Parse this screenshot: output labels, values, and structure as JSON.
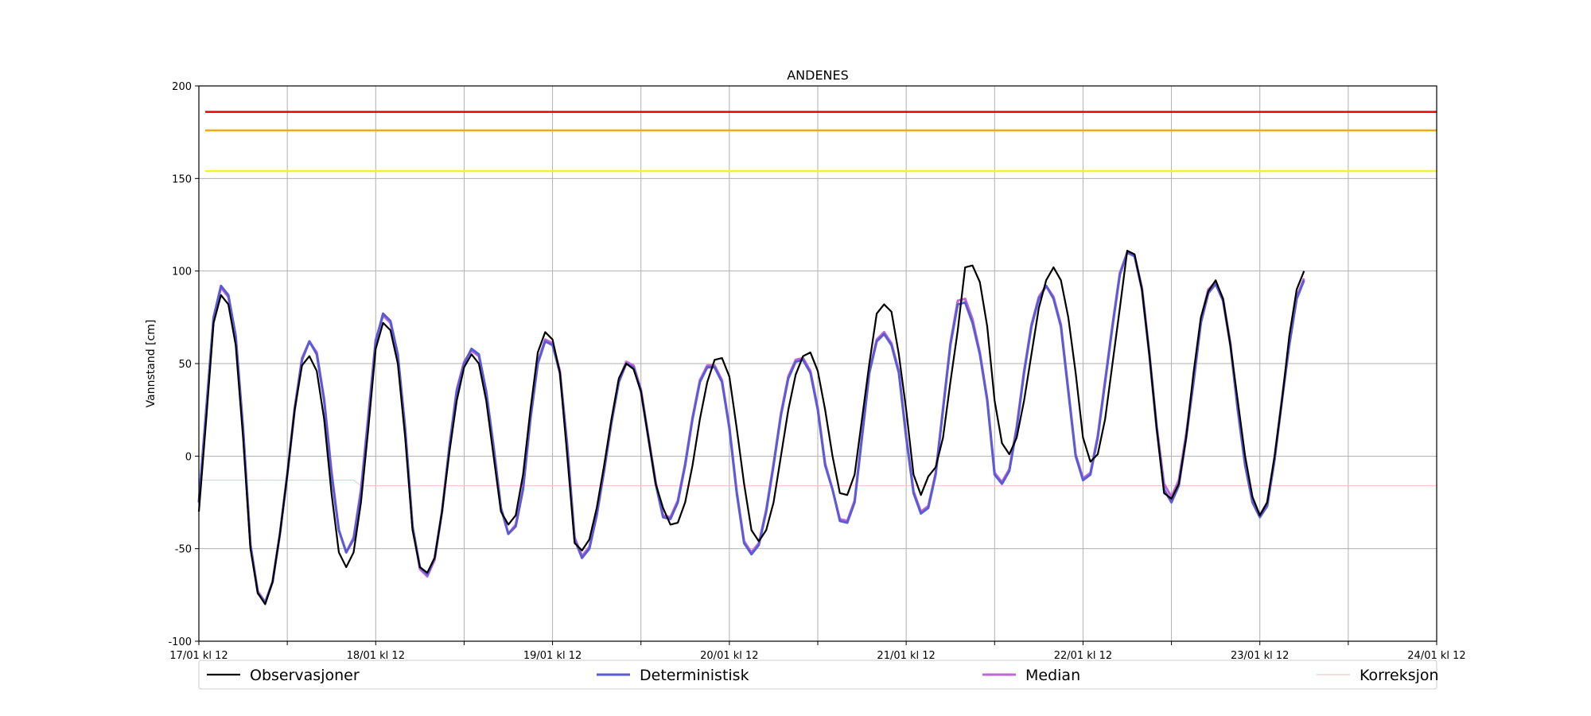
{
  "chart_data": {
    "type": "line",
    "title": "ANDENES",
    "xlabel": "",
    "ylabel": "Vannstand [cm]",
    "x_tick_labels": [
      "17/01 kl 12",
      "18/01 kl 12",
      "19/01 kl 12",
      "20/01 kl 12",
      "21/01 kl 12",
      "22/01 kl 12",
      "23/01 kl 12",
      "24/01 kl 12"
    ],
    "x_hours_range": [
      0,
      168
    ],
    "ylim": [
      -100,
      200
    ],
    "yticks": [
      -100,
      -50,
      0,
      50,
      100,
      150,
      200
    ],
    "grid": true,
    "legend_position": "bottom",
    "thresholds": [
      {
        "value": 186,
        "color": "#e8000b"
      },
      {
        "value": 176,
        "color": "#f5a623"
      },
      {
        "value": 154,
        "color": "#f7f032"
      }
    ],
    "series": [
      {
        "name": "Observasjoner",
        "color": "#000000",
        "step_hours": 1,
        "values": [
          -30,
          20,
          72,
          87,
          82,
          60,
          10,
          -50,
          -74,
          -80,
          -68,
          -42,
          -10,
          25,
          49,
          54,
          46,
          20,
          -20,
          -52,
          -60,
          -52,
          -25,
          15,
          58,
          72,
          68,
          50,
          10,
          -40,
          -60,
          -63,
          -55,
          -30,
          2,
          30,
          48,
          55,
          50,
          30,
          0,
          -30,
          -37,
          -32,
          -10,
          25,
          56,
          67,
          63,
          45,
          0,
          -47,
          -51,
          -45,
          -28,
          -5,
          20,
          42,
          50,
          47,
          35,
          10,
          -15,
          -28,
          -37,
          -36,
          -25,
          -5,
          20,
          40,
          52,
          53,
          43,
          15,
          -15,
          -40,
          -46,
          -40,
          -25,
          0,
          25,
          44,
          54,
          56,
          46,
          25,
          0,
          -20,
          -21,
          -10,
          20,
          50,
          77,
          82,
          78,
          55,
          25,
          -10,
          -21,
          -11,
          -6,
          10,
          40,
          68,
          102,
          103,
          94,
          70,
          30,
          7,
          1,
          10,
          30,
          55,
          80,
          95,
          102,
          95,
          75,
          45,
          10,
          -3,
          1,
          20,
          50,
          80,
          111,
          109,
          90,
          55,
          15,
          -20,
          -23,
          -15,
          10,
          45,
          75,
          89,
          95,
          85,
          60,
          30,
          0,
          -22,
          -32,
          -25,
          0,
          30,
          65,
          90,
          100
        ]
      },
      {
        "name": "Deterministisk",
        "color": "#5b5bd6",
        "step_hours": 1,
        "values": [
          -25,
          25,
          75,
          92,
          87,
          65,
          15,
          -48,
          -74,
          -79,
          -68,
          -42,
          -10,
          25,
          52,
          62,
          55,
          30,
          -10,
          -40,
          -52,
          -45,
          -20,
          20,
          62,
          77,
          73,
          55,
          15,
          -38,
          -60,
          -64,
          -55,
          -30,
          5,
          35,
          50,
          58,
          55,
          35,
          5,
          -28,
          -42,
          -38,
          -18,
          20,
          50,
          62,
          60,
          45,
          5,
          -45,
          -55,
          -50,
          -32,
          -8,
          18,
          40,
          50,
          48,
          35,
          10,
          -15,
          -33,
          -34,
          -25,
          -5,
          20,
          40,
          48,
          48,
          40,
          15,
          -20,
          -47,
          -53,
          -48,
          -30,
          -5,
          22,
          42,
          51,
          52,
          45,
          25,
          -5,
          -18,
          -35,
          -36,
          -25,
          10,
          45,
          62,
          66,
          60,
          45,
          10,
          -20,
          -31,
          -28,
          -10,
          25,
          60,
          82,
          83,
          72,
          55,
          30,
          -10,
          -15,
          -8,
          15,
          45,
          70,
          85,
          92,
          85,
          70,
          35,
          0,
          -13,
          -10,
          10,
          40,
          70,
          98,
          110,
          108,
          90,
          55,
          15,
          -18,
          -25,
          -16,
          10,
          40,
          72,
          88,
          93,
          84,
          60,
          25,
          -5,
          -25,
          -33,
          -27,
          -2,
          30,
          60,
          85,
          95
        ]
      },
      {
        "name": "Median",
        "color": "#c266d6",
        "step_hours": 1,
        "values": [
          -25,
          25,
          75,
          91,
          86,
          64,
          14,
          -48,
          -73,
          -79,
          -68,
          -42,
          -10,
          26,
          53,
          62,
          56,
          31,
          -8,
          -40,
          -52,
          -44,
          -18,
          22,
          63,
          76,
          72,
          54,
          14,
          -38,
          -61,
          -65,
          -56,
          -30,
          5,
          36,
          51,
          57,
          54,
          34,
          5,
          -28,
          -42,
          -37,
          -17,
          21,
          51,
          63,
          61,
          46,
          6,
          -44,
          -54,
          -49,
          -31,
          -7,
          19,
          41,
          51,
          49,
          36,
          11,
          -14,
          -32,
          -33,
          -24,
          -4,
          21,
          41,
          49,
          49,
          41,
          16,
          -19,
          -46,
          -52,
          -47,
          -29,
          -4,
          23,
          43,
          52,
          53,
          46,
          26,
          -4,
          -18,
          -34,
          -35,
          -24,
          11,
          46,
          63,
          67,
          61,
          46,
          11,
          -19,
          -30,
          -27,
          -9,
          26,
          61,
          84,
          85,
          74,
          56,
          31,
          -9,
          -14,
          -7,
          16,
          46,
          71,
          86,
          92,
          86,
          71,
          36,
          1,
          -12,
          -9,
          11,
          41,
          71,
          99,
          110,
          108,
          91,
          56,
          16,
          -15,
          -22,
          -13,
          12,
          42,
          74,
          90,
          94,
          85,
          61,
          26,
          -4,
          -23,
          -32,
          -25,
          -1,
          31,
          61,
          86,
          96
        ]
      },
      {
        "name": "Korreksjon",
        "color": "#f4c6ce",
        "step_hours": 1,
        "values": [
          -13,
          -13,
          -13,
          -13,
          -13,
          -13,
          -13,
          -13,
          -13,
          -13,
          -13,
          -13,
          -13,
          -13,
          -13,
          -13,
          -13,
          -13,
          -13,
          -13,
          -13,
          -13,
          -16,
          -16,
          -16,
          -16,
          -16,
          -16,
          -16,
          -16,
          -16,
          -16,
          -16,
          -16,
          -16,
          -16,
          -16,
          -16,
          -16,
          -16,
          -16,
          -16,
          -16,
          -16,
          -16,
          -16,
          -16,
          -16,
          -16,
          -16,
          -16,
          -16,
          -16,
          -16,
          -16,
          -16,
          -16,
          -16,
          -16,
          -16,
          -16,
          -16,
          -16,
          -16,
          -16,
          -16,
          -16,
          -16,
          -16,
          -16,
          -16,
          -16,
          -16,
          -16,
          -16,
          -16,
          -16,
          -16,
          -16,
          -16,
          -16,
          -16,
          -16,
          -16,
          -16,
          -16,
          -16,
          -16,
          -16,
          -16,
          -16,
          -16,
          -16,
          -16,
          -16,
          -16,
          -16,
          -16,
          -16,
          -16,
          -16,
          -16,
          -16,
          -16,
          -16,
          -16,
          -16,
          -16,
          -16,
          -16,
          -16,
          -16,
          -16,
          -16,
          -16,
          -16,
          -16,
          -16,
          -16,
          -16,
          -16,
          -16,
          -16,
          -16,
          -16,
          -16,
          -16,
          -16,
          -16,
          -16,
          -16,
          -16,
          -16,
          -16,
          -16,
          -16,
          -16,
          -16,
          -16,
          -16,
          -16,
          -16,
          -16,
          -16,
          -16,
          -16,
          -16,
          -16,
          -16,
          -16,
          -16,
          -16,
          -16,
          -16,
          -16,
          -16,
          -16,
          -16,
          -16,
          -16,
          -16,
          -16,
          -16,
          -16,
          -16,
          -16,
          -16,
          -16,
          -16
        ]
      }
    ]
  }
}
